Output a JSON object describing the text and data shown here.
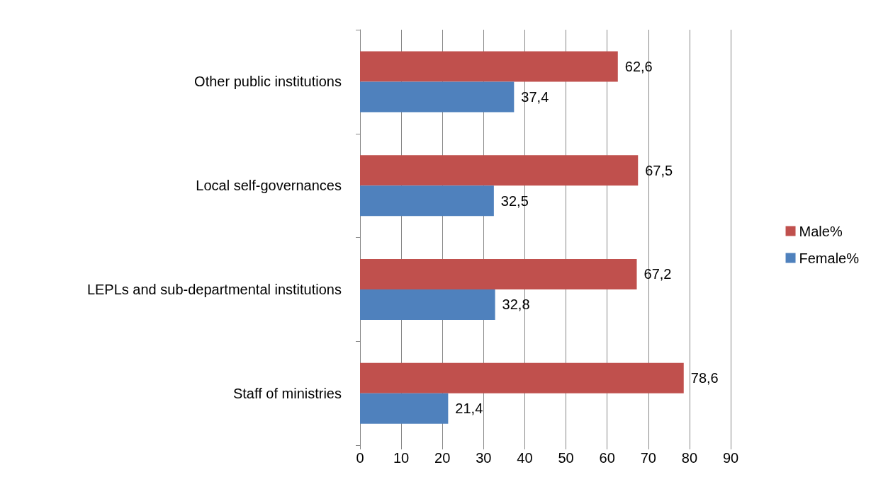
{
  "chart_data": {
    "type": "bar",
    "orientation": "horizontal",
    "categories": [
      "Other public institutions",
      "Local self-governances",
      "LEPLs and sub-departmental institutions",
      "Staff of ministries"
    ],
    "series": [
      {
        "name": "Male%",
        "color": "#c0504d",
        "values": [
          62.6,
          67.5,
          67.2,
          78.6
        ],
        "value_labels": [
          "62,6",
          "67,5",
          "67,2",
          "78,6"
        ]
      },
      {
        "name": "Female%",
        "color": "#4f81bd",
        "values": [
          37.4,
          32.5,
          32.8,
          21.4
        ],
        "value_labels": [
          "37,4",
          "32,5",
          "32,8",
          "21,4"
        ]
      }
    ],
    "xlim": [
      0,
      90
    ],
    "xticks": [
      0,
      10,
      20,
      30,
      40,
      50,
      60,
      70,
      80,
      90
    ],
    "grid": "x",
    "legend": "right"
  }
}
